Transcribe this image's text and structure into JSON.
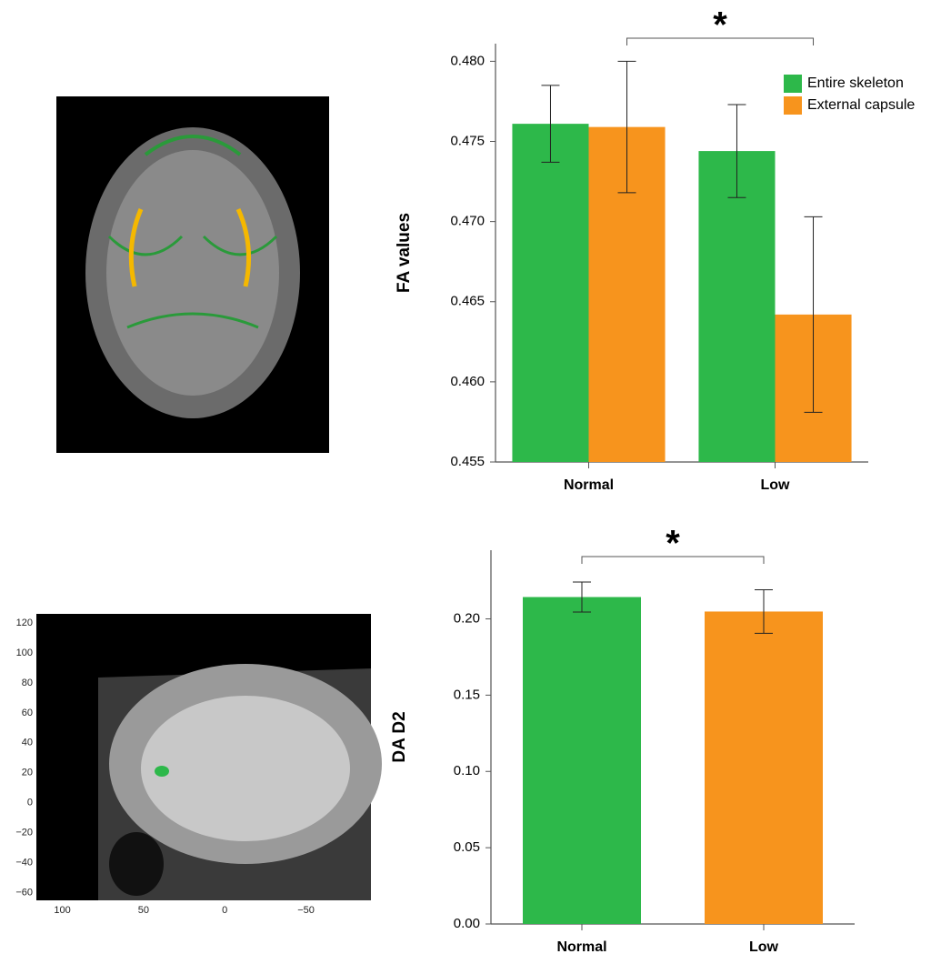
{
  "chart_data": [
    {
      "type": "bar",
      "ylabel": "FA values",
      "categories": [
        "Normal",
        "Low"
      ],
      "series": [
        {
          "name": "Entire skeleton",
          "color": "#2db84a",
          "values": [
            0.4761,
            0.4744
          ],
          "errors": [
            0.0024,
            0.0029
          ]
        },
        {
          "name": "External capsule",
          "color": "#f7941d",
          "values": [
            0.4759,
            0.4642
          ],
          "errors": [
            0.0041,
            0.0061
          ]
        }
      ],
      "ylim": [
        0.455,
        0.4811
      ],
      "yticks": [
        {
          "value": 0.48,
          "label": "0.480"
        },
        0.475,
        {
          "value": 0.47,
          "label": "0.470"
        },
        0.465,
        {
          "value": 0.46,
          "label": "0.460"
        },
        0.455
      ],
      "legend": "top-right",
      "annotation": "*"
    },
    {
      "type": "bar",
      "ylabel": "DA D2",
      "categories": [
        "Normal",
        "Low"
      ],
      "colors": [
        "#2db84a",
        "#f7941d"
      ],
      "values": [
        0.2143,
        0.2048
      ],
      "errors": [
        0.0098,
        0.0143
      ],
      "ylim": [
        0,
        0.245
      ],
      "yticks": [
        {
          "value": 0,
          "label": "0.00"
        },
        0.05,
        {
          "value": 0.1,
          "label": "0.10"
        },
        0.15,
        {
          "value": 0.2,
          "label": "0.20"
        }
      ],
      "annotation": "*"
    },
    {
      "type": "image",
      "xlim": [
        116,
        -90
      ],
      "ylim": [
        -65,
        126
      ],
      "xticks": [
        100,
        50,
        0,
        {
          "value": -50,
          "label": "−50"
        }
      ],
      "yticks": [
        120,
        100,
        80,
        60,
        40,
        20,
        0,
        {
          "value": -20,
          "label": "−20"
        },
        {
          "value": -40,
          "label": "−40"
        },
        {
          "value": -60,
          "label": "−60"
        }
      ]
    }
  ]
}
